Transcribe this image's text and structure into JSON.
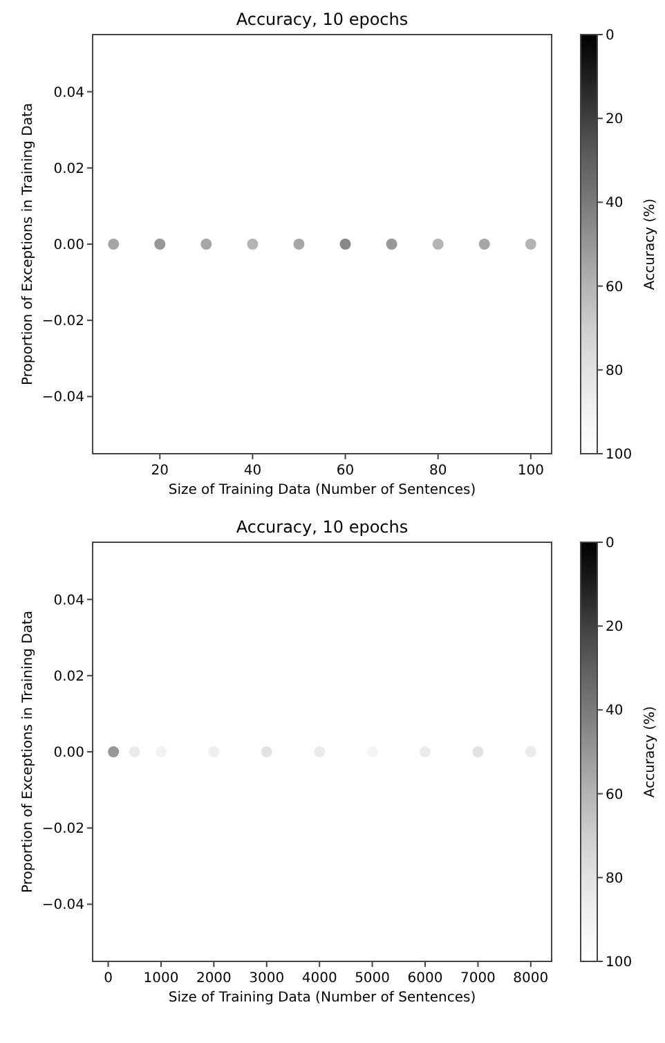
{
  "chart_data": [
    {
      "type": "scatter",
      "title": "Accuracy, 10 epochs",
      "xlabel": "Size of Training Data (Number of Sentences)",
      "ylabel": "Proportion of Exceptions in Training Data",
      "clabel": "Accuracy (%)",
      "x": [
        10,
        20,
        30,
        40,
        50,
        60,
        70,
        80,
        90,
        100
      ],
      "values": [
        0,
        0,
        0,
        0,
        0,
        0,
        0,
        0,
        0,
        0
      ],
      "cvalues": [
        55,
        50,
        55,
        60,
        55,
        45,
        50,
        60,
        55,
        60
      ],
      "xlim": [
        5.5,
        104.5
      ],
      "xticks": [
        20,
        40,
        60,
        80,
        100
      ],
      "ylim": [
        -0.055,
        0.055
      ],
      "yticks": [
        {
          "value": -0.04,
          "label": "−0.04"
        },
        {
          "value": -0.02,
          "label": "−0.02"
        },
        {
          "value": 0,
          "label": "0.00"
        },
        {
          "value": 0.02,
          "label": "0.02"
        },
        {
          "value": 0.04,
          "label": "0.04"
        }
      ],
      "clim": [
        100,
        0
      ],
      "cticks": [
        0,
        20,
        40,
        60,
        80,
        100
      ],
      "marker": "circle",
      "grid": false
    },
    {
      "type": "scatter",
      "title": "Accuracy, 10 epochs",
      "xlabel": "Size of Training Data (Number of Sentences)",
      "ylabel": "Proportion of Exceptions in Training Data",
      "clabel": "Accuracy (%)",
      "x": [
        100,
        500,
        1000,
        2000,
        3000,
        4000,
        5000,
        6000,
        7000,
        8000
      ],
      "values": [
        0,
        0,
        0,
        0,
        0,
        0,
        0,
        0,
        0,
        0
      ],
      "cvalues": [
        50,
        85,
        90,
        88,
        80,
        85,
        92,
        85,
        80,
        85
      ],
      "xlim": [
        -295,
        8395
      ],
      "xticks": [
        0,
        1000,
        2000,
        3000,
        4000,
        5000,
        6000,
        7000,
        8000
      ],
      "ylim": [
        -0.055,
        0.055
      ],
      "yticks": [
        {
          "value": -0.04,
          "label": "−0.04"
        },
        {
          "value": -0.02,
          "label": "−0.02"
        },
        {
          "value": 0,
          "label": "0.00"
        },
        {
          "value": 0.02,
          "label": "0.02"
        },
        {
          "value": 0.04,
          "label": "0.04"
        }
      ],
      "clim": [
        100,
        0
      ],
      "cticks": [
        0,
        20,
        40,
        60,
        80,
        100
      ],
      "marker": "circle",
      "grid": false
    }
  ]
}
